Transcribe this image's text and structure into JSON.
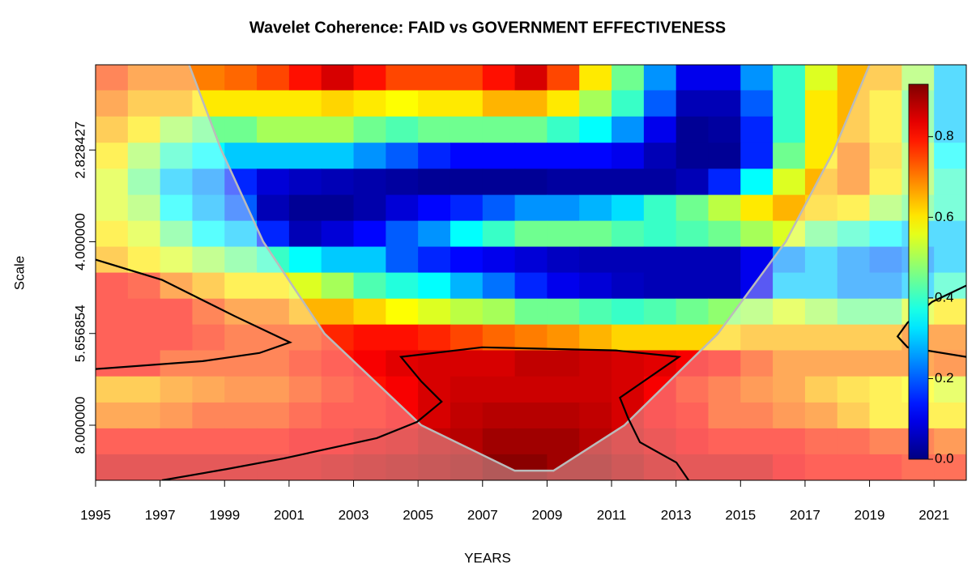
{
  "chart_data": {
    "type": "heatmap",
    "title": "Wavelet Coherence: FAID vs GOVERNMENT EFFECTIVENESS",
    "x_label": "YEARS",
    "y_label": "Scale",
    "xlim": [
      1995,
      2022
    ],
    "xticks": [
      1995,
      1997,
      1999,
      2001,
      2003,
      2005,
      2007,
      2009,
      2011,
      2013,
      2015,
      2017,
      2019,
      2021
    ],
    "ylim": [
      2.05,
      9.85
    ],
    "ylog": true,
    "y_reversed": true,
    "yticks": [
      2.828427,
      {
        "value": 4,
        "label": "4.000000"
      },
      5.656854,
      {
        "value": 8,
        "label": "8.000000"
      }
    ],
    "x": [
      1995,
      1996,
      1997,
      1998,
      1999,
      2000,
      2001,
      2002,
      2003,
      2004,
      2005,
      2006,
      2007,
      2008,
      2009,
      2010,
      2011,
      2012,
      2013,
      2014,
      2015,
      2016,
      2017,
      2018,
      2019,
      2020,
      2021
    ],
    "y": [
      2.15,
      2.37,
      2.62,
      2.89,
      3.19,
      3.52,
      3.88,
      4.28,
      4.72,
      5.21,
      5.74,
      6.33,
      6.99,
      7.71,
      8.5,
      9.38
    ],
    "z": [
      [
        0.75,
        0.7,
        0.7,
        0.7,
        0.72,
        0.75,
        0.8,
        0.85,
        0.8,
        0.75,
        0.75,
        0.75,
        0.8,
        0.85,
        0.75,
        0.6,
        0.45,
        0.25,
        0.1,
        0.1,
        0.25,
        0.4,
        0.55,
        0.65,
        0.65,
        0.5,
        0.3
      ],
      [
        0.7,
        0.65,
        0.65,
        0.6,
        0.6,
        0.6,
        0.6,
        0.62,
        0.6,
        0.58,
        0.6,
        0.6,
        0.65,
        0.65,
        0.6,
        0.5,
        0.4,
        0.2,
        0.05,
        0.05,
        0.2,
        0.4,
        0.6,
        0.65,
        0.6,
        0.45,
        0.3
      ],
      [
        0.65,
        0.6,
        0.5,
        0.45,
        0.45,
        0.5,
        0.5,
        0.5,
        0.45,
        0.42,
        0.45,
        0.45,
        0.45,
        0.45,
        0.4,
        0.35,
        0.25,
        0.1,
        0.02,
        0.03,
        0.15,
        0.4,
        0.6,
        0.65,
        0.6,
        0.45,
        0.3
      ],
      [
        0.6,
        0.5,
        0.4,
        0.35,
        0.3,
        0.3,
        0.3,
        0.3,
        0.25,
        0.2,
        0.15,
        0.12,
        0.12,
        0.12,
        0.12,
        0.12,
        0.1,
        0.05,
        0.02,
        0.02,
        0.15,
        0.45,
        0.6,
        0.7,
        0.62,
        0.5,
        0.35
      ],
      [
        0.55,
        0.45,
        0.3,
        0.25,
        0.15,
        0.08,
        0.06,
        0.05,
        0.04,
        0.03,
        0.02,
        0.02,
        0.02,
        0.02,
        0.03,
        0.03,
        0.03,
        0.03,
        0.05,
        0.15,
        0.35,
        0.55,
        0.65,
        0.7,
        0.6,
        0.5,
        0.4
      ],
      [
        0.55,
        0.5,
        0.35,
        0.28,
        0.2,
        0.05,
        0.02,
        0.02,
        0.04,
        0.08,
        0.12,
        0.15,
        0.2,
        0.25,
        0.25,
        0.28,
        0.32,
        0.4,
        0.45,
        0.52,
        0.6,
        0.65,
        0.62,
        0.6,
        0.5,
        0.45,
        0.4
      ],
      [
        0.6,
        0.55,
        0.45,
        0.35,
        0.3,
        0.15,
        0.05,
        0.08,
        0.12,
        0.2,
        0.25,
        0.35,
        0.4,
        0.45,
        0.45,
        0.45,
        0.42,
        0.4,
        0.42,
        0.45,
        0.5,
        0.55,
        0.45,
        0.4,
        0.35,
        0.3,
        0.3
      ],
      [
        0.65,
        0.6,
        0.55,
        0.5,
        0.45,
        0.4,
        0.35,
        0.3,
        0.3,
        0.2,
        0.15,
        0.12,
        0.1,
        0.08,
        0.06,
        0.05,
        0.05,
        0.05,
        0.05,
        0.05,
        0.1,
        0.25,
        0.3,
        0.25,
        0.22,
        0.25,
        0.3
      ],
      [
        0.8,
        0.78,
        0.7,
        0.65,
        0.6,
        0.6,
        0.55,
        0.5,
        0.42,
        0.38,
        0.35,
        0.28,
        0.22,
        0.15,
        0.1,
        0.08,
        0.06,
        0.05,
        0.05,
        0.05,
        0.1,
        0.3,
        0.3,
        0.25,
        0.25,
        0.3,
        0.4
      ],
      [
        0.8,
        0.8,
        0.8,
        0.75,
        0.7,
        0.7,
        0.65,
        0.65,
        0.62,
        0.58,
        0.55,
        0.52,
        0.5,
        0.45,
        0.45,
        0.42,
        0.4,
        0.42,
        0.45,
        0.48,
        0.5,
        0.55,
        0.5,
        0.45,
        0.45,
        0.55,
        0.6
      ],
      [
        0.8,
        0.8,
        0.8,
        0.78,
        0.75,
        0.75,
        0.75,
        0.78,
        0.8,
        0.8,
        0.78,
        0.75,
        0.72,
        0.7,
        0.68,
        0.65,
        0.62,
        0.62,
        0.62,
        0.62,
        0.65,
        0.65,
        0.65,
        0.65,
        0.65,
        0.7,
        0.7
      ],
      [
        0.8,
        0.8,
        0.75,
        0.75,
        0.75,
        0.75,
        0.78,
        0.8,
        0.82,
        0.84,
        0.85,
        0.85,
        0.85,
        0.87,
        0.87,
        0.86,
        0.85,
        0.84,
        0.82,
        0.8,
        0.75,
        0.7,
        0.7,
        0.7,
        0.7,
        0.7,
        0.72
      ],
      [
        0.65,
        0.65,
        0.68,
        0.7,
        0.72,
        0.72,
        0.75,
        0.78,
        0.8,
        0.82,
        0.85,
        0.86,
        0.86,
        0.86,
        0.86,
        0.86,
        0.85,
        0.82,
        0.78,
        0.75,
        0.72,
        0.7,
        0.65,
        0.62,
        0.6,
        0.58,
        0.55
      ],
      [
        0.7,
        0.7,
        0.72,
        0.75,
        0.75,
        0.75,
        0.78,
        0.8,
        0.8,
        0.82,
        0.85,
        0.87,
        0.88,
        0.88,
        0.88,
        0.87,
        0.85,
        0.82,
        0.8,
        0.75,
        0.75,
        0.72,
        0.7,
        0.65,
        0.6,
        0.6,
        0.6
      ],
      [
        0.8,
        0.8,
        0.8,
        0.8,
        0.8,
        0.8,
        0.82,
        0.82,
        0.84,
        0.85,
        0.87,
        0.88,
        0.9,
        0.9,
        0.9,
        0.88,
        0.86,
        0.84,
        0.82,
        0.8,
        0.8,
        0.8,
        0.78,
        0.78,
        0.75,
        0.75,
        0.72
      ],
      [
        0.85,
        0.85,
        0.85,
        0.85,
        0.85,
        0.85,
        0.85,
        0.86,
        0.87,
        0.88,
        0.89,
        0.9,
        0.92,
        0.92,
        0.9,
        0.9,
        0.88,
        0.86,
        0.85,
        0.85,
        0.85,
        0.82,
        0.8,
        0.8,
        0.8,
        0.78,
        0.78
      ]
    ],
    "colorbar": {
      "lim": [
        0,
        0.93
      ],
      "ticks": [
        {
          "value": 0,
          "label": "0.0"
        },
        0.2,
        0.4,
        0.6,
        0.8
      ]
    },
    "coi": {
      "x": [
        1997.9,
        1998.9,
        2000.2,
        2002.1,
        2005.1,
        2008,
        2009.2,
        2011.4,
        2014.3,
        2016.4,
        2017.9,
        2019
      ],
      "y": [
        2.05,
        2.83,
        4,
        5.66,
        8,
        9.5,
        9.5,
        8,
        5.66,
        4,
        2.83,
        2.05
      ],
      "color": "#bbbbbb"
    },
    "contours": [
      {
        "x": [
          1997.06,
          1999.07,
          2000.83,
          2003.72,
          2004.97,
          2005.73,
          2005.1,
          2004.47,
          2006.98,
          2011.13,
          2013.09,
          2011.26,
          2011.51,
          2011.88,
          2013.01,
          2013.39
        ],
        "y": [
          9.85,
          9.44,
          9.07,
          8.4,
          7.9,
          7.32,
          6.78,
          6.18,
          5.96,
          6.03,
          6.18,
          7.21,
          7.78,
          8.53,
          9.21,
          9.85
        ]
      },
      {
        "x": [
          1995,
          1997.06,
          1999.32,
          2001.03,
          2000.08,
          1998.32,
          1995
        ],
        "y": [
          4.28,
          4.62,
          5.3,
          5.85,
          6.09,
          6.28,
          6.47
        ]
      },
      {
        "x": [
          2022,
          2020.94,
          2020.18,
          2019.87,
          2020.18,
          2022
        ],
        "y": [
          4.72,
          5.02,
          5.43,
          5.72,
          5.96,
          6.18
        ]
      }
    ]
  }
}
